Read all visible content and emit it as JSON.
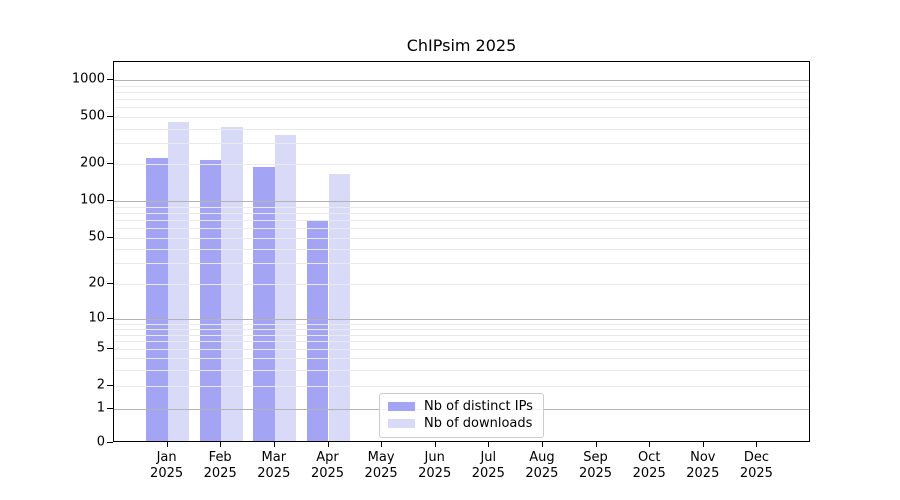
{
  "chart_data": {
    "type": "bar",
    "title": "ChIPsim 2025",
    "x_year": "2025",
    "categories": [
      "Jan",
      "Feb",
      "Mar",
      "Apr",
      "May",
      "Jun",
      "Jul",
      "Aug",
      "Sep",
      "Oct",
      "Nov",
      "Dec"
    ],
    "series": [
      {
        "name": "Nb of distinct IPs",
        "color": "#a4a4f4",
        "values": [
          225,
          218,
          192,
          69,
          null,
          null,
          null,
          null,
          null,
          null,
          null,
          null
        ]
      },
      {
        "name": "Nb of downloads",
        "color": "#d9d9f8",
        "values": [
          455,
          410,
          350,
          168,
          null,
          null,
          null,
          null,
          null,
          null,
          null,
          null
        ]
      }
    ],
    "y_ticks": [
      {
        "value": 0,
        "label": "0"
      },
      {
        "value": 1,
        "label": "1"
      },
      {
        "value": 2,
        "label": "2"
      },
      {
        "value": 5,
        "label": "5"
      },
      {
        "value": 10,
        "label": "10"
      },
      {
        "value": 20,
        "label": "20"
      },
      {
        "value": 50,
        "label": "50"
      },
      {
        "value": 100,
        "label": "100"
      },
      {
        "value": 200,
        "label": "200"
      },
      {
        "value": 500,
        "label": "500"
      },
      {
        "value": 1000,
        "label": "1000"
      }
    ],
    "y_scale": "symlog",
    "ylim": [
      0,
      1400
    ],
    "grid": true,
    "legend_position": "lower-center",
    "colors": {
      "major_gridline": "#b3b3b3",
      "minor_gridline": "#eaeaea",
      "axis": "#000000",
      "background": "#ffffff"
    }
  }
}
